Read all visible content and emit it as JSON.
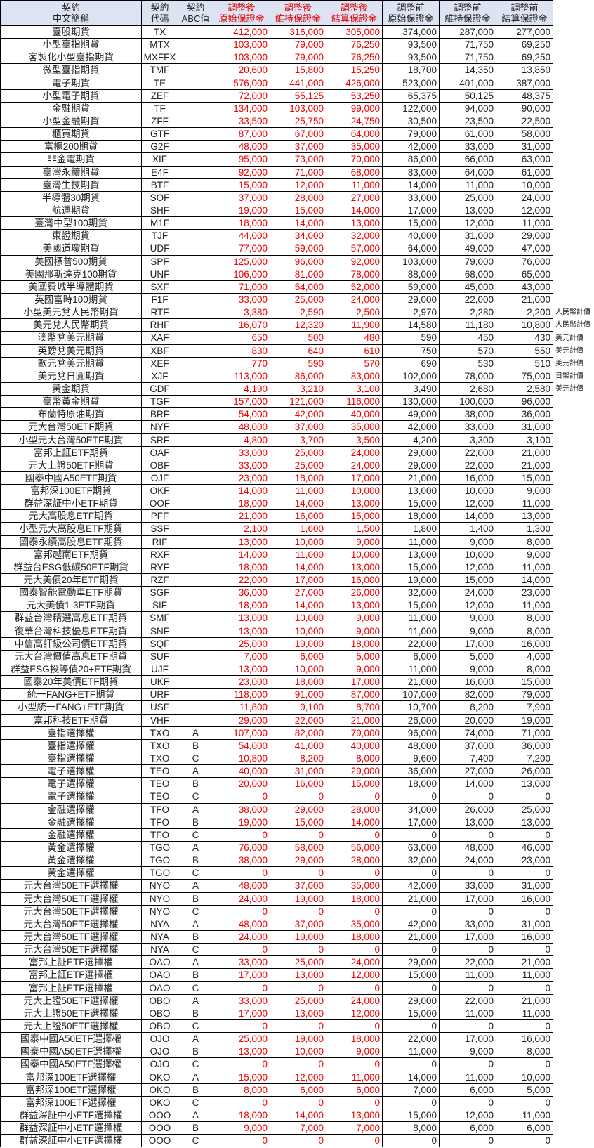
{
  "header": [
    [
      "契約",
      "中文簡稱"
    ],
    [
      "契約",
      "代碼"
    ],
    [
      "契約",
      "ABC值"
    ],
    [
      "調整後",
      "原始保證金"
    ],
    [
      "調整後",
      "維持保證金"
    ],
    [
      "調整後",
      "結算保證金"
    ],
    [
      "調整前",
      "原始保證金"
    ],
    [
      "調整前",
      "維持保證金"
    ],
    [
      "調整前",
      "結算保證金"
    ]
  ],
  "colors": {
    "adjusted_after_text": "#f00000",
    "header_bg": "#dde3f3",
    "grid": "#000000"
  },
  "rows": [
    [
      "臺股期貨",
      "TX",
      "",
      "412,000",
      "316,000",
      "305,000",
      "374,000",
      "287,000",
      "277,000",
      ""
    ],
    [
      "小型臺指期貨",
      "MTX",
      "",
      "103,000",
      "79,000",
      "76,250",
      "93,500",
      "71,750",
      "69,250",
      ""
    ],
    [
      "客製化小型臺指期貨",
      "MXFFX",
      "",
      "103,000",
      "79,000",
      "76,250",
      "93,500",
      "71,750",
      "69,250",
      ""
    ],
    [
      "微型臺指期貨",
      "TMF",
      "",
      "20,600",
      "15,800",
      "15,250",
      "18,700",
      "14,350",
      "13,850",
      ""
    ],
    [
      "電子期貨",
      "TE",
      "",
      "576,000",
      "441,000",
      "426,000",
      "523,000",
      "401,000",
      "387,000",
      ""
    ],
    [
      "小型電子期貨",
      "ZEF",
      "",
      "72,000",
      "55,125",
      "53,250",
      "65,375",
      "50,125",
      "48,375",
      ""
    ],
    [
      "金融期貨",
      "TF",
      "",
      "134,000",
      "103,000",
      "99,000",
      "122,000",
      "94,000",
      "90,000",
      ""
    ],
    [
      "小型金融期貨",
      "ZFF",
      "",
      "33,500",
      "25,750",
      "24,750",
      "30,500",
      "23,500",
      "22,500",
      ""
    ],
    [
      "櫃買期貨",
      "GTF",
      "",
      "87,000",
      "67,000",
      "64,000",
      "79,000",
      "61,000",
      "58,000",
      ""
    ],
    [
      "富櫃200期貨",
      "G2F",
      "",
      "48,000",
      "37,000",
      "35,000",
      "42,000",
      "33,000",
      "31,000",
      ""
    ],
    [
      "非金電期貨",
      "XIF",
      "",
      "95,000",
      "73,000",
      "70,000",
      "86,000",
      "66,000",
      "63,000",
      ""
    ],
    [
      "臺灣永續期貨",
      "E4F",
      "",
      "92,000",
      "71,000",
      "68,000",
      "83,000",
      "64,000",
      "61,000",
      ""
    ],
    [
      "臺灣生技期貨",
      "BTF",
      "",
      "15,000",
      "12,000",
      "11,000",
      "14,000",
      "11,000",
      "10,000",
      ""
    ],
    [
      "半導體30期貨",
      "SOF",
      "",
      "37,000",
      "28,000",
      "27,000",
      "33,000",
      "25,000",
      "24,000",
      ""
    ],
    [
      "航運期貨",
      "SHF",
      "",
      "19,000",
      "15,000",
      "14,000",
      "17,000",
      "13,000",
      "12,000",
      ""
    ],
    [
      "臺灣中型100期貨",
      "M1F",
      "",
      "18,000",
      "14,000",
      "13,000",
      "15,000",
      "12,000",
      "11,000",
      ""
    ],
    [
      "東證期貨",
      "TJF",
      "",
      "44,000",
      "34,000",
      "32,000",
      "40,000",
      "31,000",
      "29,000",
      ""
    ],
    [
      "美國道瓊期貨",
      "UDF",
      "",
      "77,000",
      "59,000",
      "57,000",
      "64,000",
      "49,000",
      "47,000",
      ""
    ],
    [
      "美國標普500期貨",
      "SPF",
      "",
      "125,000",
      "96,000",
      "92,000",
      "103,000",
      "79,000",
      "76,000",
      ""
    ],
    [
      "美國那斯達克100期貨",
      "UNF",
      "",
      "106,000",
      "81,000",
      "78,000",
      "88,000",
      "68,000",
      "65,000",
      ""
    ],
    [
      "美國費城半導體期貨",
      "SXF",
      "",
      "71,000",
      "54,000",
      "52,000",
      "59,000",
      "45,000",
      "43,000",
      ""
    ],
    [
      "英國富時100期貨",
      "F1F",
      "",
      "33,000",
      "25,000",
      "24,000",
      "29,000",
      "22,000",
      "21,000",
      ""
    ],
    [
      "小型美元兌人民幣期貨",
      "RTF",
      "",
      "3,380",
      "2,590",
      "2,500",
      "2,970",
      "2,280",
      "2,200",
      "人民幣計價"
    ],
    [
      "美元兌人民幣期貨",
      "RHF",
      "",
      "16,070",
      "12,320",
      "11,900",
      "14,580",
      "11,180",
      "10,800",
      "人民幣計價"
    ],
    [
      "澳幣兌美元期貨",
      "XAF",
      "",
      "650",
      "500",
      "480",
      "590",
      "450",
      "430",
      "美元計價"
    ],
    [
      "英鎊兌美元期貨",
      "XBF",
      "",
      "830",
      "640",
      "610",
      "750",
      "570",
      "550",
      "美元計價"
    ],
    [
      "歐元兌美元期貨",
      "XEF",
      "",
      "770",
      "590",
      "570",
      "690",
      "530",
      "510",
      "美元計價"
    ],
    [
      "美元兌日圓期貨",
      "XJF",
      "",
      "113,000",
      "86,000",
      "83,000",
      "102,000",
      "78,000",
      "75,000",
      "日幣計價"
    ],
    [
      "黃金期貨",
      "GDF",
      "",
      "4,190",
      "3,210",
      "3,100",
      "3,490",
      "2,680",
      "2,580",
      "美元計價"
    ],
    [
      "臺幣黃金期貨",
      "TGF",
      "",
      "157,000",
      "121,000",
      "116,000",
      "130,000",
      "100,000",
      "96,000",
      ""
    ],
    [
      "布蘭特原油期貨",
      "BRF",
      "",
      "54,000",
      "42,000",
      "40,000",
      "49,000",
      "38,000",
      "36,000",
      ""
    ],
    [
      "元大台灣50ETF期貨",
      "NYF",
      "",
      "48,000",
      "37,000",
      "35,000",
      "42,000",
      "33,000",
      "31,000",
      ""
    ],
    [
      "小型元大台灣50ETF期貨",
      "SRF",
      "",
      "4,800",
      "3,700",
      "3,500",
      "4,200",
      "3,300",
      "3,100",
      ""
    ],
    [
      "富邦上証ETF期貨",
      "OAF",
      "",
      "33,000",
      "25,000",
      "24,000",
      "29,000",
      "22,000",
      "21,000",
      ""
    ],
    [
      "元大上證50ETF期貨",
      "OBF",
      "",
      "33,000",
      "25,000",
      "24,000",
      "29,000",
      "22,000",
      "21,000",
      ""
    ],
    [
      "國泰中國A50ETF期貨",
      "OJF",
      "",
      "23,000",
      "18,000",
      "17,000",
      "21,000",
      "16,000",
      "15,000",
      ""
    ],
    [
      "富邦深100ETF期貨",
      "OKF",
      "",
      "14,000",
      "11,000",
      "10,000",
      "13,000",
      "10,000",
      "9,000",
      ""
    ],
    [
      "群益深証中小ETF期貨",
      "OOF",
      "",
      "18,000",
      "14,000",
      "13,000",
      "15,000",
      "12,000",
      "11,000",
      ""
    ],
    [
      "元大高股息ETF期貨",
      "PFF",
      "",
      "21,000",
      "16,000",
      "15,000",
      "18,000",
      "14,000",
      "13,000",
      ""
    ],
    [
      "小型元大高股息ETF期貨",
      "SSF",
      "",
      "2,100",
      "1,600",
      "1,500",
      "1,800",
      "1,400",
      "1,300",
      ""
    ],
    [
      "國泰永續高股息ETF期貨",
      "RIF",
      "",
      "13,000",
      "10,000",
      "9,000",
      "11,000",
      "9,000",
      "8,000",
      ""
    ],
    [
      "富邦越南ETF期貨",
      "RXF",
      "",
      "14,000",
      "11,000",
      "10,000",
      "13,000",
      "10,000",
      "9,000",
      ""
    ],
    [
      "群益台ESG低碳50ETF期貨",
      "RYF",
      "",
      "18,000",
      "14,000",
      "13,000",
      "15,000",
      "12,000",
      "11,000",
      ""
    ],
    [
      "元大美債20年ETF期貨",
      "RZF",
      "",
      "22,000",
      "17,000",
      "16,000",
      "19,000",
      "15,000",
      "14,000",
      ""
    ],
    [
      "國泰智能電動車ETF期貨",
      "SGF",
      "",
      "36,000",
      "27,000",
      "26,000",
      "32,000",
      "24,000",
      "23,000",
      ""
    ],
    [
      "元大美債1-3ETF期貨",
      "SIF",
      "",
      "18,000",
      "14,000",
      "13,000",
      "15,000",
      "12,000",
      "11,000",
      ""
    ],
    [
      "群益台灣精選高息ETF期貨",
      "SMF",
      "",
      "13,000",
      "10,000",
      "9,000",
      "11,000",
      "9,000",
      "8,000",
      ""
    ],
    [
      "復華台灣科技優息ETF期貨",
      "SNF",
      "",
      "13,000",
      "10,000",
      "9,000",
      "11,000",
      "9,000",
      "8,000",
      ""
    ],
    [
      "中信高評級公司債ETF期貨",
      "SQF",
      "",
      "25,000",
      "19,000",
      "18,000",
      "22,000",
      "17,000",
      "16,000",
      ""
    ],
    [
      "元大台灣價值高息ETF期貨",
      "SUF",
      "",
      "7,000",
      "6,000",
      "5,000",
      "6,000",
      "5,000",
      "4,000",
      ""
    ],
    [
      "群益ESG投等債20+ETF期貨",
      "UJF",
      "",
      "13,000",
      "10,000",
      "9,000",
      "11,000",
      "9,000",
      "8,000",
      ""
    ],
    [
      "國泰20年美債ETF期貨",
      "UKF",
      "",
      "23,000",
      "18,000",
      "17,000",
      "21,000",
      "16,000",
      "15,000",
      ""
    ],
    [
      "統一FANG+ETF期貨",
      "URF",
      "",
      "118,000",
      "91,000",
      "87,000",
      "107,000",
      "82,000",
      "79,000",
      ""
    ],
    [
      "小型統一FANG+ETF期貨",
      "USF",
      "",
      "11,800",
      "9,100",
      "8,700",
      "10,700",
      "8,200",
      "7,900",
      ""
    ],
    [
      "富邦科技ETF期貨",
      "VHF",
      "",
      "29,000",
      "22,000",
      "21,000",
      "26,000",
      "20,000",
      "19,000",
      ""
    ],
    [
      "臺指選擇權",
      "TXO",
      "A",
      "107,000",
      "82,000",
      "79,000",
      "96,000",
      "74,000",
      "71,000",
      ""
    ],
    [
      "臺指選擇權",
      "TXO",
      "B",
      "54,000",
      "41,000",
      "40,000",
      "48,000",
      "37,000",
      "36,000",
      ""
    ],
    [
      "臺指選擇權",
      "TXO",
      "C",
      "10,800",
      "8,200",
      "8,000",
      "9,600",
      "7,400",
      "7,200",
      ""
    ],
    [
      "電子選擇權",
      "TEO",
      "A",
      "40,000",
      "31,000",
      "29,000",
      "36,000",
      "27,000",
      "26,000",
      ""
    ],
    [
      "電子選擇權",
      "TEO",
      "B",
      "20,000",
      "16,000",
      "15,000",
      "18,000",
      "14,000",
      "13,000",
      ""
    ],
    [
      "電子選擇權",
      "TEO",
      "C",
      "0",
      "0",
      "0",
      "0",
      "0",
      "0",
      ""
    ],
    [
      "金融選擇權",
      "TFO",
      "A",
      "38,000",
      "29,000",
      "28,000",
      "34,000",
      "26,000",
      "25,000",
      ""
    ],
    [
      "金融選擇權",
      "TFO",
      "B",
      "19,000",
      "15,000",
      "14,000",
      "17,000",
      "13,000",
      "13,000",
      ""
    ],
    [
      "金融選擇權",
      "TFO",
      "C",
      "0",
      "0",
      "0",
      "0",
      "0",
      "0",
      ""
    ],
    [
      "黃金選擇權",
      "TGO",
      "A",
      "76,000",
      "58,000",
      "56,000",
      "63,000",
      "48,000",
      "46,000",
      ""
    ],
    [
      "黃金選擇權",
      "TGO",
      "B",
      "38,000",
      "29,000",
      "28,000",
      "32,000",
      "24,000",
      "23,000",
      ""
    ],
    [
      "黃金選擇權",
      "TGO",
      "C",
      "0",
      "0",
      "0",
      "0",
      "0",
      "0",
      ""
    ],
    [
      "元大台灣50ETF選擇權",
      "NYO",
      "A",
      "48,000",
      "37,000",
      "35,000",
      "42,000",
      "33,000",
      "31,000",
      ""
    ],
    [
      "元大台灣50ETF選擇權",
      "NYO",
      "B",
      "24,000",
      "19,000",
      "18,000",
      "21,000",
      "17,000",
      "16,000",
      ""
    ],
    [
      "元大台灣50ETF選擇權",
      "NYO",
      "C",
      "0",
      "0",
      "0",
      "0",
      "0",
      "0",
      ""
    ],
    [
      "元大台灣50ETF選擇權",
      "NYA",
      "A",
      "48,000",
      "37,000",
      "35,000",
      "42,000",
      "33,000",
      "31,000",
      ""
    ],
    [
      "元大台灣50ETF選擇權",
      "NYA",
      "B",
      "24,000",
      "19,000",
      "18,000",
      "21,000",
      "17,000",
      "16,000",
      ""
    ],
    [
      "元大台灣50ETF選擇權",
      "NYA",
      "C",
      "0",
      "0",
      "0",
      "0",
      "0",
      "0",
      ""
    ],
    [
      "富邦上証ETF選擇權",
      "OAO",
      "A",
      "33,000",
      "25,000",
      "24,000",
      "29,000",
      "22,000",
      "21,000",
      ""
    ],
    [
      "富邦上証ETF選擇權",
      "OAO",
      "B",
      "17,000",
      "13,000",
      "12,000",
      "15,000",
      "11,000",
      "11,000",
      ""
    ],
    [
      "富邦上証ETF選擇權",
      "OAO",
      "C",
      "0",
      "0",
      "0",
      "0",
      "0",
      "0",
      ""
    ],
    [
      "元大上證50ETF選擇權",
      "OBO",
      "A",
      "33,000",
      "25,000",
      "24,000",
      "29,000",
      "22,000",
      "21,000",
      ""
    ],
    [
      "元大上證50ETF選擇權",
      "OBO",
      "B",
      "17,000",
      "13,000",
      "12,000",
      "15,000",
      "11,000",
      "11,000",
      ""
    ],
    [
      "元大上證50ETF選擇權",
      "OBO",
      "C",
      "0",
      "0",
      "0",
      "0",
      "0",
      "0",
      ""
    ],
    [
      "國泰中國A50ETF選擇權",
      "OJO",
      "A",
      "25,000",
      "19,000",
      "18,000",
      "22,000",
      "17,000",
      "16,000",
      ""
    ],
    [
      "國泰中國A50ETF選擇權",
      "OJO",
      "B",
      "13,000",
      "10,000",
      "9,000",
      "11,000",
      "9,000",
      "8,000",
      ""
    ],
    [
      "國泰中國A50ETF選擇權",
      "OJO",
      "C",
      "0",
      "0",
      "0",
      "0",
      "0",
      "0",
      ""
    ],
    [
      "富邦深100ETF選擇權",
      "OKO",
      "A",
      "15,000",
      "12,000",
      "11,000",
      "14,000",
      "11,000",
      "10,000",
      ""
    ],
    [
      "富邦深100ETF選擇權",
      "OKO",
      "B",
      "8,000",
      "6,000",
      "6,000",
      "7,000",
      "6,000",
      "5,000",
      ""
    ],
    [
      "富邦深100ETF選擇權",
      "OKO",
      "C",
      "0",
      "0",
      "0",
      "0",
      "0",
      "0",
      ""
    ],
    [
      "群益深証中小ETF選擇權",
      "OOO",
      "A",
      "18,000",
      "14,000",
      "13,000",
      "15,000",
      "12,000",
      "11,000",
      ""
    ],
    [
      "群益深証中小ETF選擇權",
      "OOO",
      "B",
      "9,000",
      "7,000",
      "7,000",
      "8,000",
      "6,000",
      "6,000",
      ""
    ],
    [
      "群益深証中小ETF選擇權",
      "OOO",
      "C",
      "0",
      "0",
      "0",
      "0",
      "0",
      "0",
      ""
    ]
  ]
}
